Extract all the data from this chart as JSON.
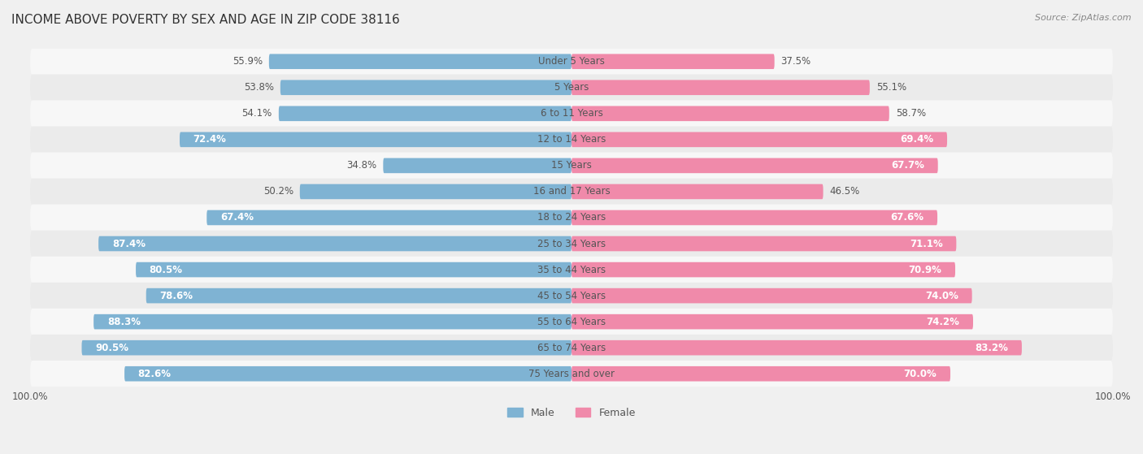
{
  "title": "INCOME ABOVE POVERTY BY SEX AND AGE IN ZIP CODE 38116",
  "source": "Source: ZipAtlas.com",
  "categories": [
    "Under 5 Years",
    "5 Years",
    "6 to 11 Years",
    "12 to 14 Years",
    "15 Years",
    "16 and 17 Years",
    "18 to 24 Years",
    "25 to 34 Years",
    "35 to 44 Years",
    "45 to 54 Years",
    "55 to 64 Years",
    "65 to 74 Years",
    "75 Years and over"
  ],
  "male_values": [
    55.9,
    53.8,
    54.1,
    72.4,
    34.8,
    50.2,
    67.4,
    87.4,
    80.5,
    78.6,
    88.3,
    90.5,
    82.6
  ],
  "female_values": [
    37.5,
    55.1,
    58.7,
    69.4,
    67.7,
    46.5,
    67.6,
    71.1,
    70.9,
    74.0,
    74.2,
    83.2,
    70.0
  ],
  "male_color": "#7fb3d3",
  "female_color": "#f08aaa",
  "male_label": "Male",
  "female_label": "Female",
  "bg_color": "#f0f0f0",
  "row_color_even": "#f7f7f7",
  "row_color_odd": "#ebebeb",
  "xlim": 100.0,
  "bar_height": 0.58,
  "inside_label_threshold": 60,
  "title_fontsize": 11,
  "label_fontsize": 8.5,
  "tick_fontsize": 8.5,
  "source_fontsize": 8
}
